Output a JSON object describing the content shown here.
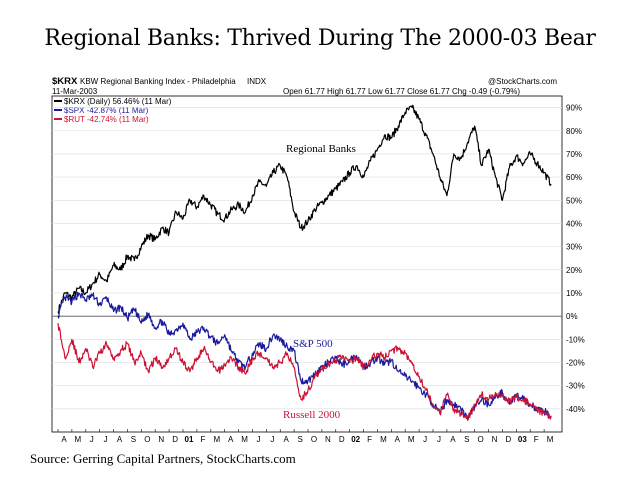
{
  "page": {
    "title": "Regional Banks: Thrived During The 2000-03 Bear",
    "source": "Source: Gerring Capital Partners, StockCharts.com"
  },
  "chart_header": {
    "symbol": "$KRX",
    "description": "KBW Regional Banking Index - Philadelphia",
    "exchange": "INDX",
    "date": "11-Mar-2003",
    "watermark": "@StockCharts.com",
    "ohlc": "Open 61.77  High 61.77  Low 61.77  Close 61.77  Chg -0.49 (-0.79%)",
    "legend": [
      {
        "label": "$KRX (Daily) 56.46% (11 Mar)",
        "color": "#000000"
      },
      {
        "label": "$SPX -42.87% (11 Mar)",
        "color": "#1a1a9a"
      },
      {
        "label": "$RUT -42.74% (11 Mar)",
        "color": "#cc1133"
      }
    ]
  },
  "annotations": {
    "regional": "Regional Banks",
    "sp500": "S&P 500",
    "russell": "Russell 2000"
  },
  "chart_data": {
    "type": "line",
    "ylabel_unit": "%",
    "ylim": [
      -50,
      95
    ],
    "y_ticks": [
      "90%",
      "80%",
      "70%",
      "60%",
      "50%",
      "40%",
      "30%",
      "20%",
      "10%",
      "0%",
      "-10%",
      "-20%",
      "-30%",
      "-40%"
    ],
    "x_ticks": [
      {
        "label": "A",
        "bold": false
      },
      {
        "label": "M",
        "bold": false
      },
      {
        "label": "J",
        "bold": false
      },
      {
        "label": "J",
        "bold": false
      },
      {
        "label": "A",
        "bold": false
      },
      {
        "label": "S",
        "bold": false
      },
      {
        "label": "O",
        "bold": false
      },
      {
        "label": "N",
        "bold": false
      },
      {
        "label": "D",
        "bold": false
      },
      {
        "label": "01",
        "bold": true
      },
      {
        "label": "F",
        "bold": false
      },
      {
        "label": "M",
        "bold": false
      },
      {
        "label": "A",
        "bold": false
      },
      {
        "label": "M",
        "bold": false
      },
      {
        "label": "J",
        "bold": false
      },
      {
        "label": "J",
        "bold": false
      },
      {
        "label": "A",
        "bold": false
      },
      {
        "label": "S",
        "bold": false
      },
      {
        "label": "O",
        "bold": false
      },
      {
        "label": "N",
        "bold": false
      },
      {
        "label": "D",
        "bold": false
      },
      {
        "label": "02",
        "bold": true
      },
      {
        "label": "F",
        "bold": false
      },
      {
        "label": "M",
        "bold": false
      },
      {
        "label": "A",
        "bold": false
      },
      {
        "label": "M",
        "bold": false
      },
      {
        "label": "J",
        "bold": false
      },
      {
        "label": "J",
        "bold": false
      },
      {
        "label": "A",
        "bold": false
      },
      {
        "label": "S",
        "bold": false
      },
      {
        "label": "O",
        "bold": false
      },
      {
        "label": "N",
        "bold": false
      },
      {
        "label": "D",
        "bold": false
      },
      {
        "label": "03",
        "bold": true
      },
      {
        "label": "F",
        "bold": false
      },
      {
        "label": "M",
        "bold": false
      }
    ],
    "x_range_months": [
      0,
      36
    ],
    "series": [
      {
        "name": "$KRX (Daily) 56.46% (11 Mar)",
        "color": "#000000",
        "x": [
          0,
          0.5,
          1,
          1.5,
          2,
          2.5,
          3,
          3.5,
          4,
          4.5,
          5,
          5.5,
          6,
          6.5,
          7,
          7.5,
          8,
          8.5,
          9,
          9.5,
          10,
          10.5,
          11,
          11.5,
          12,
          12.5,
          13,
          13.5,
          14,
          14.5,
          15,
          15.5,
          16,
          16.5,
          17,
          17.5,
          18,
          18.5,
          19,
          19.5,
          20,
          20.5,
          21,
          21.5,
          22,
          22.5,
          23,
          23.5,
          24,
          24.5,
          25,
          25.5,
          26,
          26.5,
          27,
          27.5,
          28,
          28.5,
          29,
          29.5,
          30,
          30.5,
          31,
          31.5,
          32,
          32.5,
          33,
          33.5,
          34,
          34.5,
          35,
          35.5
        ],
        "values": [
          2,
          10,
          8,
          12,
          10,
          14,
          18,
          15,
          22,
          20,
          26,
          24,
          30,
          35,
          33,
          38,
          36,
          45,
          42,
          50,
          47,
          52,
          48,
          44,
          42,
          46,
          48,
          45,
          52,
          58,
          56,
          62,
          65,
          60,
          45,
          38,
          41,
          46,
          49,
          52,
          55,
          58,
          62,
          65,
          60,
          67,
          72,
          78,
          77,
          82,
          88,
          90,
          85,
          78,
          70,
          60,
          52,
          70,
          68,
          75,
          82,
          65,
          72,
          60,
          50,
          64,
          69,
          66,
          70,
          66,
          62,
          57
        ]
      },
      {
        "name": "$SPX -42.87% (11 Mar)",
        "color": "#1a1a9a",
        "x": [
          0,
          0.5,
          1,
          1.5,
          2,
          2.5,
          3,
          3.5,
          4,
          4.5,
          5,
          5.5,
          6,
          6.5,
          7,
          7.5,
          8,
          8.5,
          9,
          9.5,
          10,
          10.5,
          11,
          11.5,
          12,
          12.5,
          13,
          13.5,
          14,
          14.5,
          15,
          15.5,
          16,
          16.5,
          17,
          17.5,
          18,
          18.5,
          19,
          19.5,
          20,
          20.5,
          21,
          21.5,
          22,
          22.5,
          23,
          23.5,
          24,
          24.5,
          25,
          25.5,
          26,
          26.5,
          27,
          27.5,
          28,
          28.5,
          29,
          29.5,
          30,
          30.5,
          31,
          31.5,
          32,
          32.5,
          33,
          33.5,
          34,
          34.5,
          35,
          35.5
        ],
        "values": [
          0,
          8,
          6,
          10,
          7,
          9,
          5,
          8,
          2,
          4,
          -1,
          3,
          -3,
          1,
          -5,
          -2,
          -8,
          -6,
          -3,
          -10,
          -7,
          -5,
          -9,
          -12,
          -8,
          -15,
          -20,
          -22,
          -16,
          -12,
          -14,
          -8,
          -10,
          -13,
          -15,
          -28,
          -28,
          -25,
          -22,
          -20,
          -18,
          -21,
          -19,
          -17,
          -22,
          -20,
          -18,
          -21,
          -19,
          -24,
          -26,
          -28,
          -31,
          -34,
          -38,
          -42,
          -36,
          -38,
          -40,
          -44,
          -39,
          -36,
          -38,
          -35,
          -33,
          -38,
          -34,
          -36,
          -38,
          -40,
          -41,
          -43
        ]
      },
      {
        "name": "$RUT -42.74% (11 Mar)",
        "color": "#cc1133",
        "x": [
          0,
          0.5,
          1,
          1.5,
          2,
          2.5,
          3,
          3.5,
          4,
          4.5,
          5,
          5.5,
          6,
          6.5,
          7,
          7.5,
          8,
          8.5,
          9,
          9.5,
          10,
          10.5,
          11,
          11.5,
          12,
          12.5,
          13,
          13.5,
          14,
          14.5,
          15,
          15.5,
          16,
          16.5,
          17,
          17.5,
          18,
          18.5,
          19,
          19.5,
          20,
          20.5,
          21,
          21.5,
          22,
          22.5,
          23,
          23.5,
          24,
          24.5,
          25,
          25.5,
          26,
          26.5,
          27,
          27.5,
          28,
          28.5,
          29,
          29.5,
          30,
          30.5,
          31,
          31.5,
          32,
          32.5,
          33,
          33.5,
          34,
          34.5,
          35,
          35.5
        ],
        "values": [
          -3,
          -18,
          -10,
          -20,
          -14,
          -22,
          -16,
          -12,
          -18,
          -15,
          -12,
          -20,
          -16,
          -24,
          -18,
          -22,
          -18,
          -14,
          -20,
          -24,
          -18,
          -14,
          -20,
          -24,
          -21,
          -18,
          -22,
          -25,
          -18,
          -16,
          -18,
          -22,
          -20,
          -16,
          -22,
          -36,
          -32,
          -26,
          -23,
          -21,
          -19,
          -17,
          -20,
          -18,
          -22,
          -19,
          -16,
          -18,
          -15,
          -14,
          -16,
          -20,
          -26,
          -32,
          -38,
          -42,
          -34,
          -40,
          -42,
          -45,
          -38,
          -34,
          -36,
          -33,
          -34,
          -37,
          -35,
          -36,
          -38,
          -41,
          -42,
          -43
        ]
      }
    ]
  }
}
